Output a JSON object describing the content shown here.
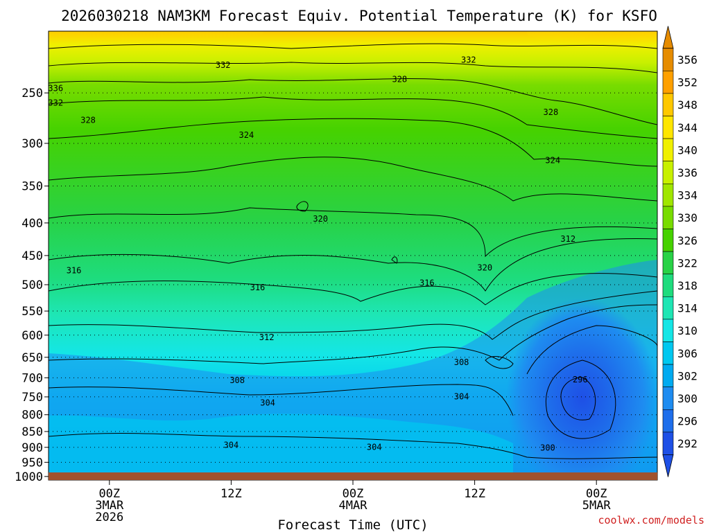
{
  "chart_data": {
    "type": "heatmap",
    "title": "2026030218 NAM3KM Forecast Equiv. Potential Temperature (K) for KSFO",
    "xlabel": "Forecast Time (UTC)",
    "ylabel": "",
    "credit": "coolwx.com/models",
    "x_ticks": [
      {
        "hour": 6,
        "lines": [
          "00Z",
          "3MAR",
          "2026"
        ]
      },
      {
        "hour": 18,
        "lines": [
          "12Z"
        ]
      },
      {
        "hour": 30,
        "lines": [
          "00Z",
          "4MAR"
        ]
      },
      {
        "hour": 42,
        "lines": [
          "12Z"
        ]
      },
      {
        "hour": 54,
        "lines": [
          "00Z",
          "5MAR"
        ]
      }
    ],
    "x_range_hours": [
      0,
      60
    ],
    "y_ticks": [
      250,
      300,
      350,
      400,
      450,
      500,
      550,
      600,
      650,
      700,
      750,
      800,
      850,
      900,
      950,
      1000
    ],
    "y_range_hPa": [
      200,
      1013
    ],
    "colorbar": {
      "labels": [
        356,
        352,
        348,
        344,
        340,
        336,
        334,
        330,
        326,
        322,
        318,
        314,
        310,
        306,
        302,
        300,
        296,
        292
      ],
      "colors": [
        "#e68c00",
        "#ffa000",
        "#ffc800",
        "#ffe600",
        "#f0f000",
        "#c8f000",
        "#a0e600",
        "#78dc00",
        "#46d200",
        "#28d246",
        "#1edc7d",
        "#1ee6b4",
        "#14e6e6",
        "#00c8f0",
        "#00aaf0",
        "#1e8cf0",
        "#1e6eeb",
        "#1e50e6"
      ]
    },
    "contour_labels": [
      {
        "text": "332",
        "hour": 17.2,
        "p": 226
      },
      {
        "text": "332",
        "hour": 41.4,
        "p": 222
      },
      {
        "text": "328",
        "hour": 34.6,
        "p": 238
      },
      {
        "text": "336",
        "hour": 0.7,
        "p": 246
      },
      {
        "text": "332",
        "hour": 0.7,
        "p": 259
      },
      {
        "text": "328",
        "hour": 3.9,
        "p": 276
      },
      {
        "text": "328",
        "hour": 49.5,
        "p": 268
      },
      {
        "text": "324",
        "hour": 19.5,
        "p": 291
      },
      {
        "text": "324",
        "hour": 49.7,
        "p": 319
      },
      {
        "text": "320",
        "hour": 26.8,
        "p": 394
      },
      {
        "text": "312",
        "hour": 51.2,
        "p": 424
      },
      {
        "text": "316",
        "hour": 2.5,
        "p": 475
      },
      {
        "text": "320",
        "hour": 43.0,
        "p": 470
      },
      {
        "text": "316",
        "hour": 20.6,
        "p": 505
      },
      {
        "text": "316",
        "hour": 37.3,
        "p": 497
      },
      {
        "text": "312",
        "hour": 21.5,
        "p": 605
      },
      {
        "text": "308",
        "hour": 40.7,
        "p": 662
      },
      {
        "text": "308",
        "hour": 18.6,
        "p": 706
      },
      {
        "text": "296",
        "hour": 52.4,
        "p": 705
      },
      {
        "text": "304",
        "hour": 21.6,
        "p": 766
      },
      {
        "text": "304",
        "hour": 40.7,
        "p": 749
      },
      {
        "text": "304",
        "hour": 18.0,
        "p": 893
      },
      {
        "text": "304",
        "hour": 32.1,
        "p": 899
      },
      {
        "text": "300",
        "hour": 49.2,
        "p": 902
      }
    ]
  }
}
